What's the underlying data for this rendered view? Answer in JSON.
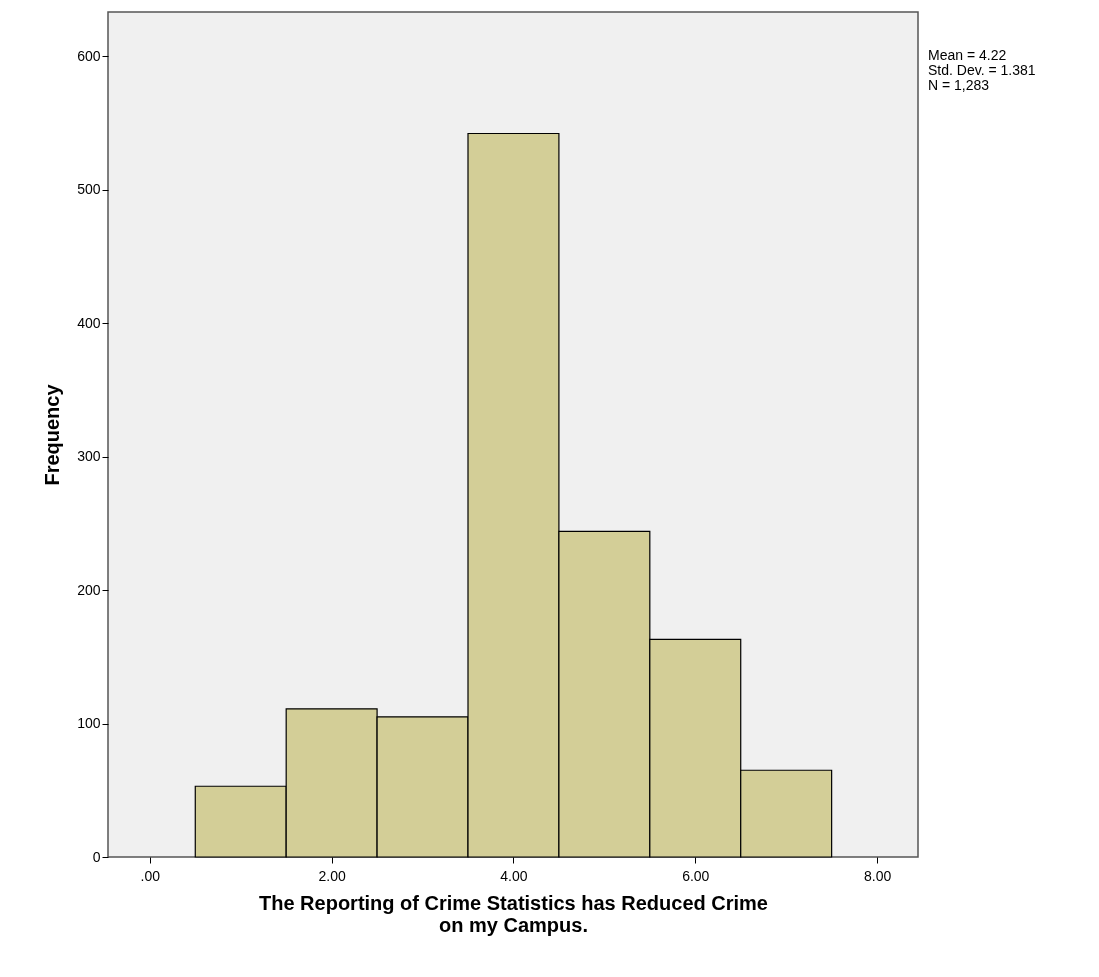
{
  "chart_data": {
    "type": "histogram",
    "xlabel": "The Reporting of Crime Statistics has Reduced Crime on my Campus.",
    "ylabel": "Frequency",
    "bins": [
      0.5,
      1.5,
      2.5,
      3.5,
      4.5,
      5.5,
      6.5,
      7.5
    ],
    "values": [
      53,
      111,
      105,
      542,
      244,
      163,
      65
    ],
    "color": "#d3ce97",
    "xlim": [
      -0.46,
      8.45
    ],
    "xticks": [
      {
        "value": 0,
        "label": ".00"
      },
      {
        "value": 2,
        "label": "2.00"
      },
      {
        "value": 4,
        "label": "4.00"
      },
      {
        "value": 6,
        "label": "6.00"
      },
      {
        "value": 8,
        "label": "8.00"
      }
    ],
    "ylim": [
      0,
      633
    ],
    "yticks": [
      0,
      100,
      200,
      300,
      400,
      500,
      600
    ],
    "grid": false,
    "annotations": [
      "Mean = 4.22",
      "Std. Dev. = 1.381",
      "N = 1,283"
    ]
  }
}
